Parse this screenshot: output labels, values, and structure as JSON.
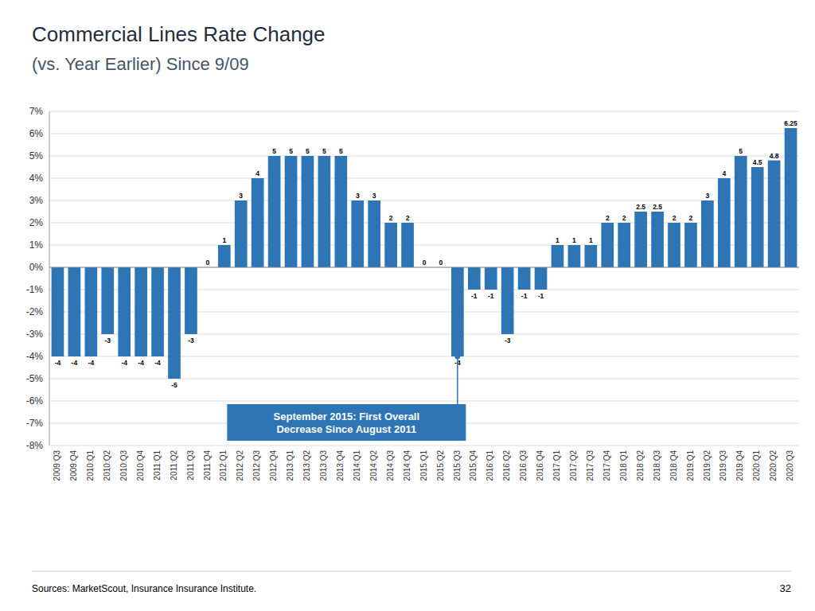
{
  "chart_data": {
    "type": "bar",
    "title": "Commercial Lines Rate Change",
    "subtitle": "(vs. Year Earlier) Since 9/09",
    "categories": [
      "2009:Q3",
      "2009:Q4",
      "2010:Q1",
      "2010:Q2",
      "2010:Q3",
      "2010:Q4",
      "2011:Q1",
      "2011:Q2",
      "2011:Q3",
      "2011:Q4",
      "2012:Q1",
      "2012:Q2",
      "2012:Q3",
      "2012:Q4",
      "2013:Q1",
      "2013:Q2",
      "2013:Q3",
      "2013:Q4",
      "2014:Q1",
      "2014:Q2",
      "2014:Q3",
      "2014:Q4",
      "2015:Q1",
      "2015:Q2",
      "2015:Q3",
      "2015:Q4",
      "2016:Q1",
      "2016:Q2",
      "2016:Q3",
      "2016:Q4",
      "2017:Q1",
      "2017:Q2",
      "2017:Q3",
      "2017:Q4",
      "2018:Q1",
      "2018:Q2",
      "2018:Q3",
      "2018:Q4",
      "2019:Q1",
      "2019:Q2",
      "2019:Q3",
      "2019:Q4",
      "2020:Q1",
      "2020:Q2",
      "2020:Q3"
    ],
    "values": [
      -4,
      -4,
      -4,
      -3,
      -4,
      -4,
      -4,
      -5,
      -3,
      0,
      1,
      3,
      4,
      5,
      5,
      5,
      5,
      5,
      3,
      3,
      2,
      2,
      0,
      0,
      -4,
      -1,
      -1,
      -3,
      -1,
      -1,
      1,
      1,
      1,
      2,
      2,
      2.5,
      2.5,
      2,
      2,
      3,
      4,
      5,
      4.5,
      4.8,
      6.25
    ],
    "color": "#2E75B6",
    "ylim": [
      -8,
      7
    ],
    "yticks": [
      {
        "value": -8,
        "label": "-8%"
      },
      {
        "value": -7,
        "label": "-7%"
      },
      {
        "value": -6,
        "label": "-6%"
      },
      {
        "value": -5,
        "label": "-5%"
      },
      {
        "value": -4,
        "label": "-4%"
      },
      {
        "value": -3,
        "label": "-3%"
      },
      {
        "value": -2,
        "label": "-2%"
      },
      {
        "value": -1,
        "label": "-1%"
      },
      {
        "value": 0,
        "label": "0%"
      },
      {
        "value": 1,
        "label": "1%"
      },
      {
        "value": 2,
        "label": "2%"
      },
      {
        "value": 3,
        "label": "3%"
      },
      {
        "value": 4,
        "label": "4%"
      },
      {
        "value": 5,
        "label": "5%"
      },
      {
        "value": 6,
        "label": "6%"
      },
      {
        "value": 7,
        "label": "7%"
      }
    ],
    "grid": true,
    "data_labels": true,
    "annotations": [
      {
        "text": "September 2015: First Overall\nDecrease Since August 2011",
        "category": "2015:Q3",
        "color": "#2E75B6"
      }
    ],
    "source": "Sources: MarketScout, Insurance Insurance Institute.",
    "page_number": "32"
  }
}
